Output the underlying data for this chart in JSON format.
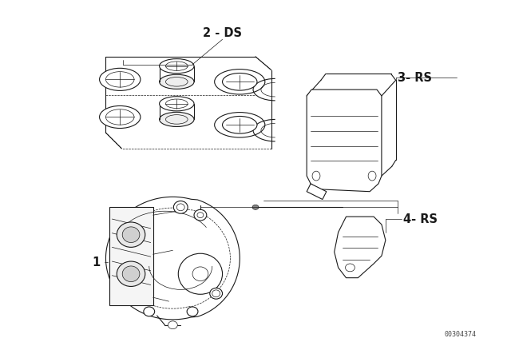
{
  "background_color": "#ffffff",
  "fig_width": 6.4,
  "fig_height": 4.48,
  "dpi": 100,
  "labels": {
    "label_2ds": "2 - DS",
    "label_3rs": "3- RS",
    "label_4rs": "4- RS",
    "label_1": "1",
    "watermark": "00304374"
  },
  "line_color": "#1a1a1a",
  "text_color": "#1a1a1a",
  "line_width": 0.8,
  "thin_line": 0.5,
  "thick_line": 1.2
}
